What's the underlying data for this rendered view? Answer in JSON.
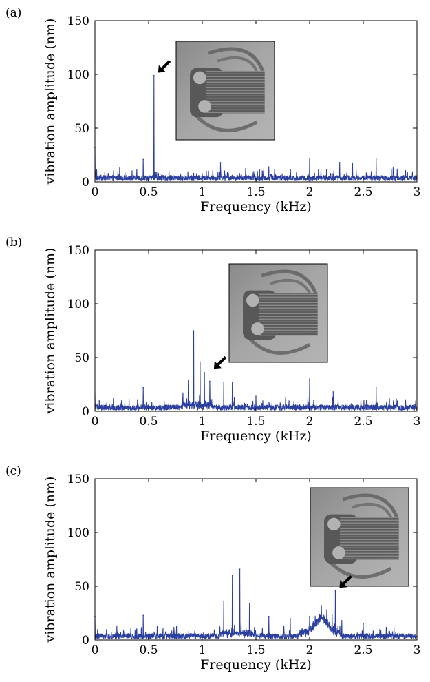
{
  "chart_data": [
    {
      "type": "line",
      "panel_label": "(a)",
      "xlabel": "Frequency (kHz)",
      "ylabel": "vibration amplitude (nm)",
      "xlim": [
        0,
        3
      ],
      "ylim": [
        0,
        150
      ],
      "xticks": [
        "0",
        "0.5",
        "1",
        "1.5",
        "2",
        "2.5",
        "3"
      ],
      "yticks": [
        "0",
        "50",
        "100",
        "150"
      ],
      "line_color": "#2b3f9e",
      "arrow_target": [
        0.55,
        99
      ],
      "series": [
        {
          "x": [
            0.0,
            0.005,
            0.45,
            0.55,
            1.17,
            1.62,
            2.0,
            2.28,
            2.4,
            2.62
          ],
          "y": [
            32,
            10,
            21,
            99,
            18,
            14,
            22,
            18,
            17,
            22
          ]
        }
      ]
    },
    {
      "type": "line",
      "panel_label": "(b)",
      "xlabel": "Frequency (kHz)",
      "ylabel": "vibration amplitude (nm)",
      "xlim": [
        0,
        3
      ],
      "ylim": [
        0,
        150
      ],
      "xticks": [
        "0",
        "0.5",
        "1",
        "1.5",
        "2",
        "2.5",
        "3"
      ],
      "yticks": [
        "0",
        "50",
        "100",
        "150"
      ],
      "line_color": "#2b3f9e",
      "arrow_target": [
        1.07,
        37
      ],
      "series": [
        {
          "x": [
            0.0,
            0.45,
            0.82,
            0.87,
            0.92,
            0.98,
            1.02,
            1.07,
            1.2,
            1.28,
            1.5,
            2.0,
            2.22,
            2.62
          ],
          "y": [
            17,
            22,
            17,
            29,
            75,
            46,
            36,
            28,
            27,
            27,
            14,
            30,
            18,
            22
          ]
        }
      ]
    },
    {
      "type": "line",
      "panel_label": "(c)",
      "xlabel": "Frequency (kHz)",
      "ylabel": "vibration amplitude (nm)",
      "xlim": [
        0,
        3
      ],
      "ylim": [
        0,
        150
      ],
      "xticks": [
        "0",
        "0.5",
        "1",
        "1.5",
        "2",
        "2.5",
        "3"
      ],
      "yticks": [
        "0",
        "50",
        "100",
        "150"
      ],
      "line_color": "#2b3f9e",
      "arrow_target": [
        2.24,
        46
      ],
      "series": [
        {
          "x": [
            0.0,
            0.45,
            1.2,
            1.28,
            1.35,
            1.44,
            1.62,
            1.82,
            2.0,
            2.11,
            2.16,
            2.21,
            2.24,
            2.3,
            2.5
          ],
          "y": [
            22,
            23,
            36,
            60,
            66,
            34,
            22,
            20,
            22,
            32,
            28,
            24,
            46,
            18,
            15
          ]
        }
      ]
    }
  ]
}
